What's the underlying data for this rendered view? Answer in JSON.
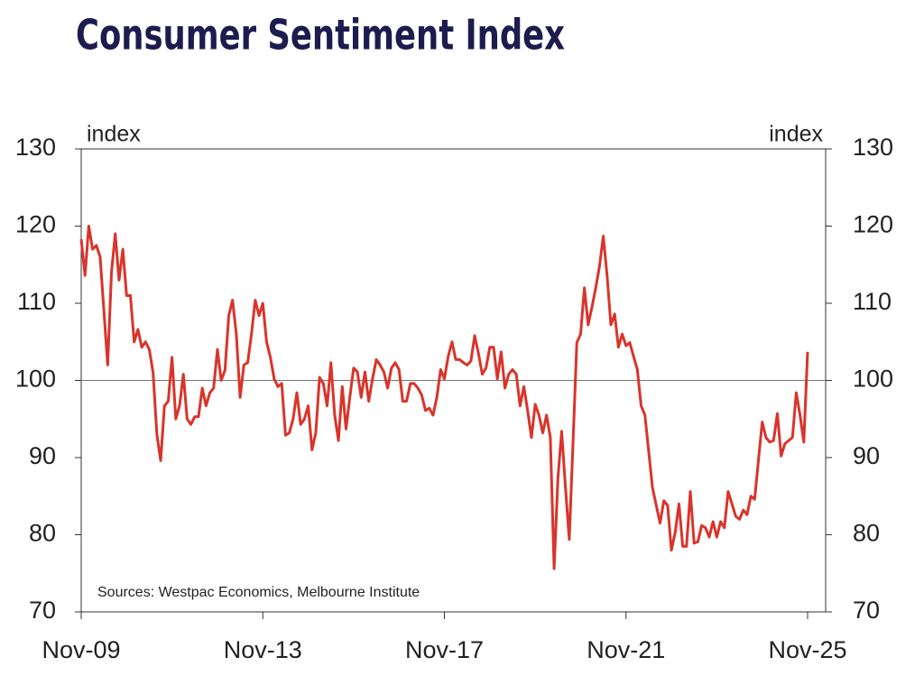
{
  "chart_data": {
    "type": "line",
    "title": "Consumer Sentiment Index",
    "y_label": "index",
    "y2_label": "index",
    "source": "Sources: Westpac Economics, Melbourne Institute",
    "x": [
      "2009-11",
      "2009-12",
      "2010-01",
      "2010-02",
      "2010-03",
      "2010-04",
      "2010-05",
      "2010-06",
      "2010-07",
      "2010-08",
      "2010-09",
      "2010-10",
      "2010-11",
      "2010-12",
      "2011-01",
      "2011-02",
      "2011-03",
      "2011-04",
      "2011-05",
      "2011-06",
      "2011-07",
      "2011-08",
      "2011-09",
      "2011-10",
      "2011-11",
      "2011-12",
      "2012-01",
      "2012-02",
      "2012-03",
      "2012-04",
      "2012-05",
      "2012-06",
      "2012-07",
      "2012-08",
      "2012-09",
      "2012-10",
      "2012-11",
      "2012-12",
      "2013-01",
      "2013-02",
      "2013-03",
      "2013-04",
      "2013-05",
      "2013-06",
      "2013-07",
      "2013-08",
      "2013-09",
      "2013-10",
      "2013-11",
      "2013-12",
      "2014-01",
      "2014-02",
      "2014-03",
      "2014-04",
      "2014-05",
      "2014-06",
      "2014-07",
      "2014-08",
      "2014-09",
      "2014-10",
      "2014-11",
      "2014-12",
      "2015-01",
      "2015-02",
      "2015-03",
      "2015-04",
      "2015-05",
      "2015-06",
      "2015-07",
      "2015-08",
      "2015-09",
      "2015-10",
      "2015-11",
      "2015-12",
      "2016-01",
      "2016-02",
      "2016-03",
      "2016-04",
      "2016-05",
      "2016-06",
      "2016-07",
      "2016-08",
      "2016-09",
      "2016-10",
      "2016-11",
      "2016-12",
      "2017-01",
      "2017-02",
      "2017-03",
      "2017-04",
      "2017-05",
      "2017-06",
      "2017-07",
      "2017-08",
      "2017-09",
      "2017-10",
      "2017-11",
      "2017-12",
      "2018-01",
      "2018-02",
      "2018-03",
      "2018-04",
      "2018-05",
      "2018-06",
      "2018-07",
      "2018-08",
      "2018-09",
      "2018-10",
      "2018-11",
      "2018-12",
      "2019-01",
      "2019-02",
      "2019-03",
      "2019-04",
      "2019-05",
      "2019-06",
      "2019-07",
      "2019-08",
      "2019-09",
      "2019-10",
      "2019-11",
      "2019-12",
      "2020-01",
      "2020-02",
      "2020-03",
      "2020-04",
      "2020-05",
      "2020-06",
      "2020-07",
      "2020-08",
      "2020-09",
      "2020-10",
      "2020-11",
      "2020-12",
      "2021-01",
      "2021-02",
      "2021-03",
      "2021-04",
      "2021-05",
      "2021-06",
      "2021-07",
      "2021-08",
      "2021-09",
      "2021-10",
      "2021-11",
      "2021-12",
      "2022-01",
      "2022-02",
      "2022-03",
      "2022-04",
      "2022-05",
      "2022-06",
      "2022-07",
      "2022-08",
      "2022-09",
      "2022-10",
      "2022-11",
      "2022-12",
      "2023-01",
      "2023-02",
      "2023-03",
      "2023-04",
      "2023-05",
      "2023-06",
      "2023-07",
      "2023-08",
      "2023-09",
      "2023-10",
      "2023-11",
      "2023-12",
      "2024-01",
      "2024-02",
      "2024-03",
      "2024-04",
      "2024-05",
      "2024-06",
      "2024-07",
      "2024-08",
      "2024-09",
      "2024-10",
      "2024-11",
      "2024-12",
      "2025-01",
      "2025-02",
      "2025-03",
      "2025-04",
      "2025-05",
      "2025-06",
      "2025-07",
      "2025-08",
      "2025-09",
      "2025-10",
      "2025-11"
    ],
    "series": [
      {
        "name": "Consumer Sentiment Index",
        "color": "#d9342b",
        "values": [
          118.3,
          113.6,
          120,
          117,
          117.5,
          116,
          109,
          102,
          114,
          119,
          113,
          117,
          111,
          111,
          105,
          106.6,
          104.3,
          105,
          104,
          101,
          93,
          89.6,
          96.7,
          97.3,
          103,
          95,
          96.7,
          100.8,
          95,
          94.3,
          95.3,
          95.3,
          99,
          96.7,
          98.4,
          99,
          104,
          100,
          101.3,
          108.4,
          110.4,
          106,
          97.8,
          102,
          102.3,
          106,
          110.4,
          108.4,
          110,
          105,
          103,
          100.2,
          99.2,
          99.6,
          92.9,
          93.2,
          95,
          98.4,
          94.3,
          95,
          96.7,
          91,
          93.2,
          100.4,
          99.6,
          96.7,
          102.3,
          95.5,
          92.2,
          99.2,
          93.7,
          97.8,
          101.6,
          101.1,
          97.8,
          101.1,
          97.3,
          100.2,
          102.7,
          102,
          101.1,
          99,
          101.6,
          102.3,
          101.4,
          97.3,
          97.3,
          99.6,
          99.6,
          99,
          98.1,
          96.1,
          96.4,
          95.5,
          97.8,
          101.4,
          100.2,
          103.1,
          105,
          102.7,
          102.7,
          102.3,
          102,
          102.5,
          105.8,
          103.5,
          100.8,
          101.6,
          104.3,
          104.3,
          100.2,
          103.7,
          99,
          100.8,
          101.4,
          100.8,
          96.7,
          99.2,
          96.1,
          92.6,
          96.9,
          95.5,
          93.2,
          95.5,
          92.6,
          75.6,
          87.3,
          93.4,
          86.1,
          79.4,
          92,
          104.9,
          106,
          112,
          107.2,
          109.5,
          112,
          114.8,
          118.7,
          113.6,
          107.2,
          108.6,
          104.3,
          106,
          104.5,
          104.9,
          103.1,
          101.4,
          96.7,
          95.5,
          90.8,
          86.1,
          83.8,
          81.5,
          84.4,
          83.8,
          78,
          80.3,
          84,
          78.5,
          78.5,
          85.6,
          78.9,
          79.1,
          81.2,
          80.9,
          79.7,
          81.7,
          79.7,
          81.7,
          80.9,
          85.6,
          84,
          82.4,
          82,
          83.2,
          82.6,
          85,
          84.6,
          89.6,
          94.6,
          92.6,
          92,
          92.2,
          95.7,
          90.2,
          91.8,
          92.2,
          92.6,
          98.4,
          95.5,
          92,
          103.7
        ]
      }
    ],
    "xticks": [
      {
        "value": "2009-11",
        "label": "Nov-09"
      },
      {
        "value": "2013-11",
        "label": "Nov-13"
      },
      {
        "value": "2017-11",
        "label": "Nov-17"
      },
      {
        "value": "2021-11",
        "label": "Nov-21"
      },
      {
        "value": "2025-11",
        "label": "Nov-25"
      }
    ],
    "xlim": [
      "2009-11",
      "2025-11"
    ],
    "ylim": [
      70,
      130
    ],
    "yticks": [
      70,
      80,
      90,
      100,
      110,
      120,
      130
    ],
    "y2lim": [
      70,
      130
    ],
    "y2ticks": [
      70,
      80,
      90,
      100,
      110,
      120,
      130
    ],
    "reference_line": 100
  }
}
